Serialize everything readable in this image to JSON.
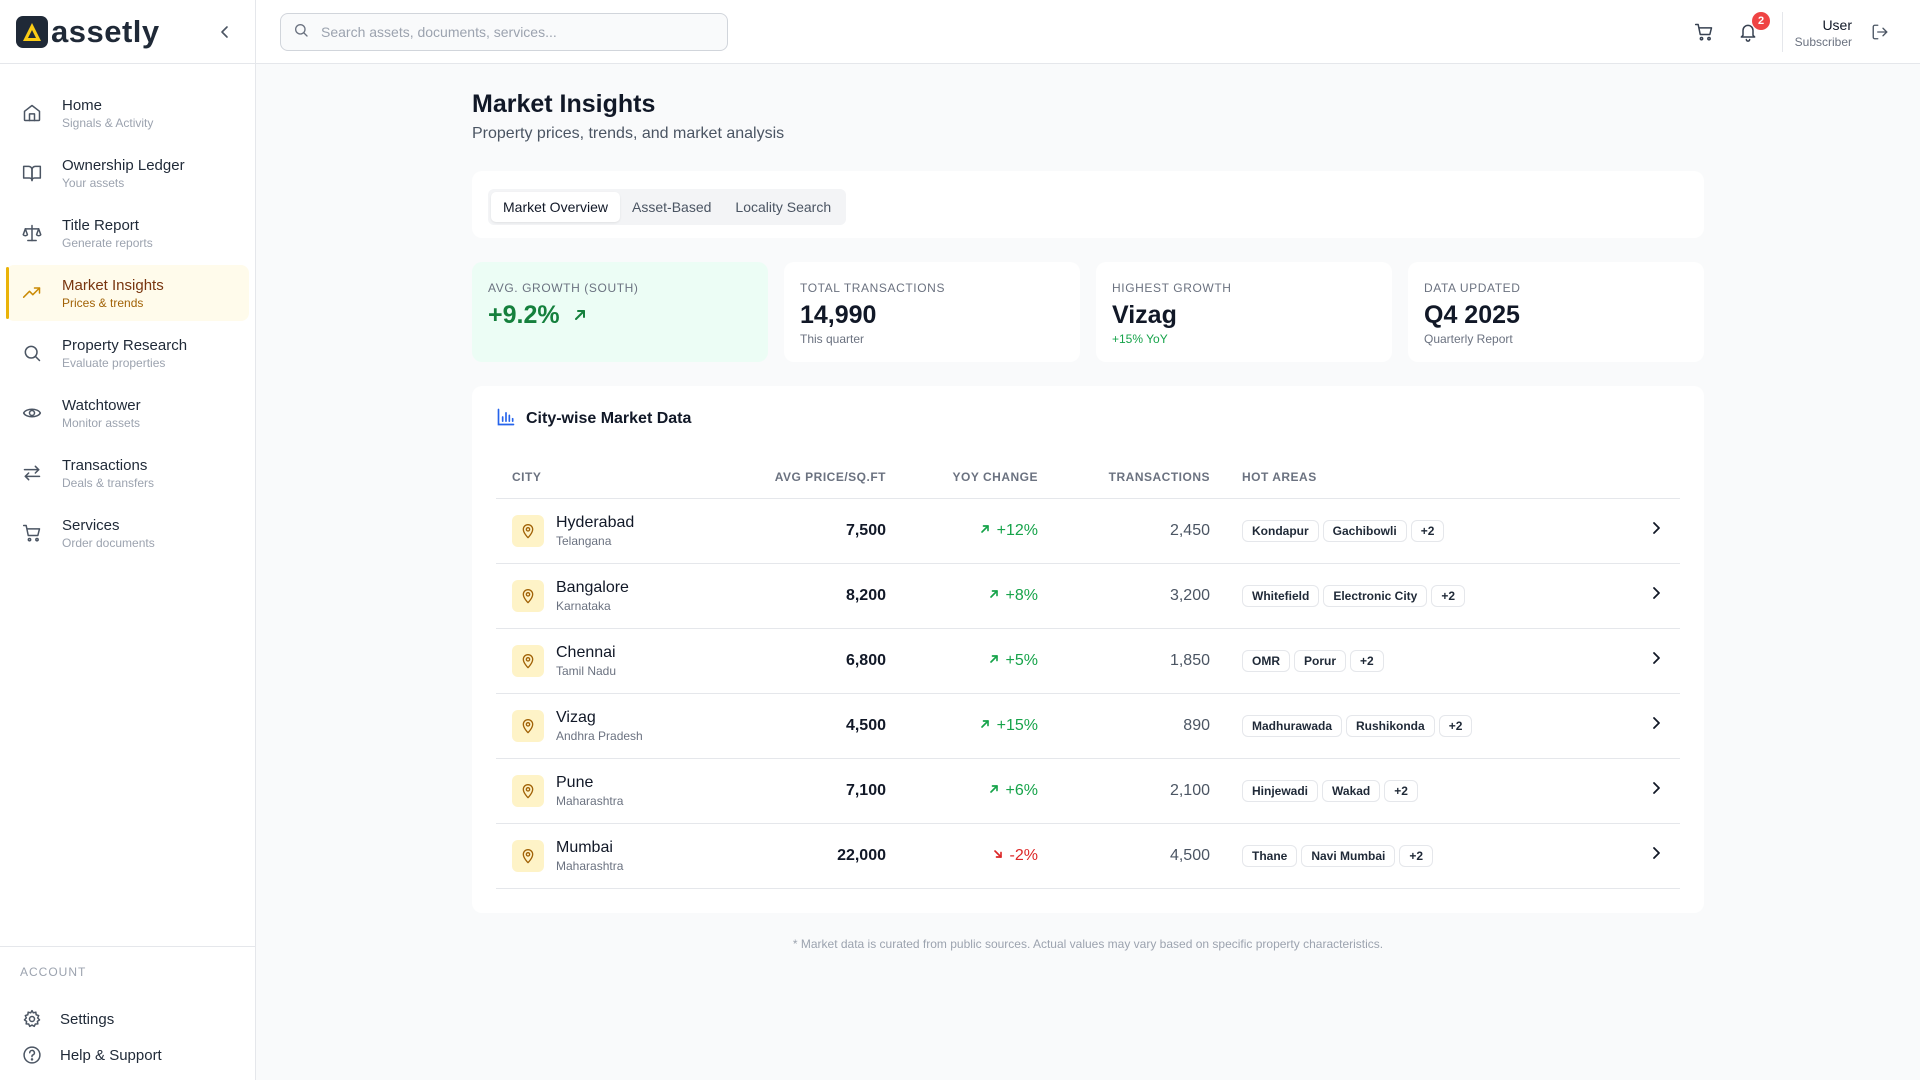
{
  "brand": {
    "name": "assetly"
  },
  "sidebar": {
    "items": [
      {
        "label": "Home",
        "sub": "Signals & Activity",
        "icon": "home-icon"
      },
      {
        "label": "Ownership Ledger",
        "sub": "Your assets",
        "icon": "book-icon"
      },
      {
        "label": "Title Report",
        "sub": "Generate reports",
        "icon": "scale-icon"
      },
      {
        "label": "Market Insights",
        "sub": "Prices & trends",
        "icon": "trending-up-icon",
        "active": true
      },
      {
        "label": "Property Research",
        "sub": "Evaluate properties",
        "icon": "search-icon"
      },
      {
        "label": "Watchtower",
        "sub": "Monitor assets",
        "icon": "eye-icon"
      },
      {
        "label": "Transactions",
        "sub": "Deals & transfers",
        "icon": "transfer-icon"
      },
      {
        "label": "Services",
        "sub": "Order documents",
        "icon": "cart-icon"
      }
    ],
    "account_title": "ACCOUNT",
    "account_items": [
      {
        "label": "Settings",
        "icon": "gear-icon"
      },
      {
        "label": "Help & Support",
        "icon": "help-icon"
      }
    ]
  },
  "topbar": {
    "search_placeholder": "Search assets, documents, services...",
    "notification_count": "2",
    "user_name": "User",
    "user_role": "Subscriber"
  },
  "page": {
    "title": "Market Insights",
    "subtitle": "Property prices, trends, and market analysis"
  },
  "tabs": [
    {
      "label": "Market Overview",
      "active": true
    },
    {
      "label": "Asset-Based"
    },
    {
      "label": "Locality Search"
    }
  ],
  "stats": [
    {
      "label": "AVG. GROWTH (SOUTH)",
      "value": "+9.2%"
    },
    {
      "label": "TOTAL TRANSACTIONS",
      "value": "14,990",
      "note": "This quarter"
    },
    {
      "label": "HIGHEST GROWTH",
      "value": "Vizag",
      "note": "+15% YoY"
    },
    {
      "label": "DATA UPDATED",
      "value": "Q4 2025",
      "note": "Quarterly Report"
    }
  ],
  "table": {
    "title": "City-wise Market Data",
    "headers": [
      "CITY",
      "AVG PRICE/SQ.FT",
      "YOY CHANGE",
      "TRANSACTIONS",
      "HOT AREAS"
    ],
    "rows": [
      {
        "city": "Hyderabad",
        "state": "Telangana",
        "price": "7,500",
        "yoy": "+12%",
        "dir": "up",
        "tx": "2,450",
        "areas": [
          "Kondapur",
          "Gachibowli"
        ],
        "more": "+2"
      },
      {
        "city": "Bangalore",
        "state": "Karnataka",
        "price": "8,200",
        "yoy": "+8%",
        "dir": "up",
        "tx": "3,200",
        "areas": [
          "Whitefield",
          "Electronic City"
        ],
        "more": "+2"
      },
      {
        "city": "Chennai",
        "state": "Tamil Nadu",
        "price": "6,800",
        "yoy": "+5%",
        "dir": "up",
        "tx": "1,850",
        "areas": [
          "OMR",
          "Porur"
        ],
        "more": "+2"
      },
      {
        "city": "Vizag",
        "state": "Andhra Pradesh",
        "price": "4,500",
        "yoy": "+15%",
        "dir": "up",
        "tx": "890",
        "areas": [
          "Madhurawada",
          "Rushikonda"
        ],
        "more": "+2"
      },
      {
        "city": "Pune",
        "state": "Maharashtra",
        "price": "7,100",
        "yoy": "+6%",
        "dir": "up",
        "tx": "2,100",
        "areas": [
          "Hinjewadi",
          "Wakad"
        ],
        "more": "+2"
      },
      {
        "city": "Mumbai",
        "state": "Maharashtra",
        "price": "22,000",
        "yoy": "-2%",
        "dir": "down",
        "tx": "4,500",
        "areas": [
          "Thane",
          "Navi Mumbai"
        ],
        "more": "+2"
      }
    ]
  },
  "footnote": "* Market data is curated from public sources. Actual values may vary based on specific property characteristics.",
  "colors": {
    "accent": "#eab308",
    "positive": "#16a34a",
    "negative": "#dc2626",
    "brand_dark": "#1f2937"
  }
}
